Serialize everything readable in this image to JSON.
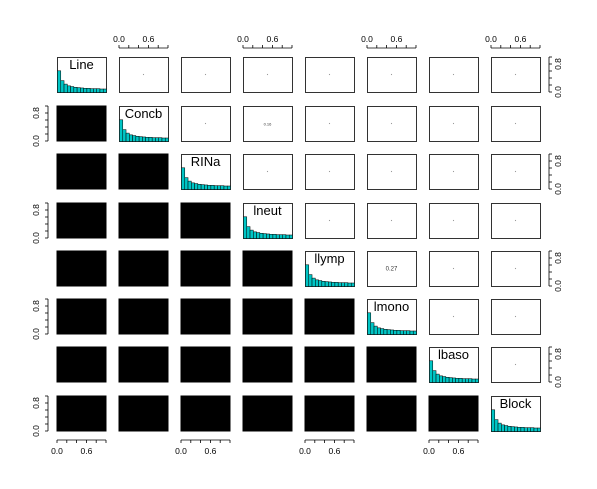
{
  "chart_data": {
    "type": "scatter-matrix",
    "variables": [
      "Line",
      "Concb",
      "RINa",
      "lneut",
      "llymp",
      "lmono",
      "lbaso",
      "Block"
    ],
    "histogram_heights": [
      0.62,
      0.34,
      0.24,
      0.19,
      0.17,
      0.15,
      0.14,
      0.13,
      0.12,
      0.12,
      0.11,
      0.11,
      0.11,
      0.1,
      0.1
    ],
    "axis_ticks": {
      "top": [
        "0.0",
        "0.6"
      ],
      "bottom": [
        "0.0",
        "0.6"
      ],
      "left": [
        "0.0",
        "0.8"
      ],
      "right": [
        "0.0",
        "0.8"
      ]
    },
    "correlation_labels": {
      "2_4": "0.16",
      "5_6": "0.27"
    },
    "colors": {
      "histogram_fill": "#00c5c5",
      "lower_panel_fill": "#000000",
      "frame": "#000000"
    }
  }
}
